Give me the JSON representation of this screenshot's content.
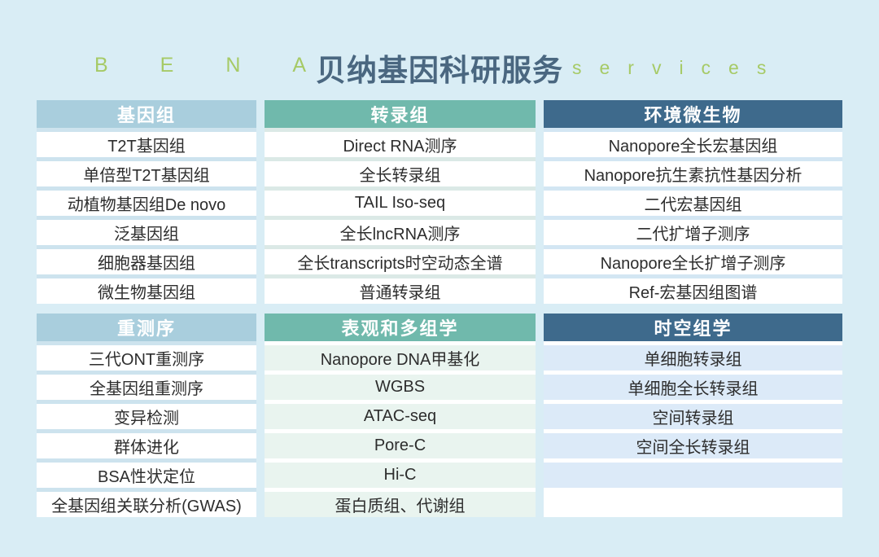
{
  "header": {
    "brand_left": "BENA",
    "title": "贝纳基因科研服务",
    "brand_right": "services"
  },
  "palette": {
    "page_bg": "#d9edf5",
    "brand_green": "#a6ca66",
    "title_color": "#4a6780",
    "header_light_blue": "#a9cedd",
    "header_teal": "#70b9ac",
    "header_dark_blue": "#3e6a8c",
    "row_white": "#ffffff",
    "row_tint_teal": "#e9f4ef",
    "row_tint_blue": "#dceaf8",
    "item_text": "#2d2d2d",
    "header_text": "#ffffff"
  },
  "columns": [
    {
      "name": "genome",
      "css": "col-1",
      "sections": [
        {
          "id": "genome",
          "theme": "light-blue",
          "header": "基因组",
          "items": [
            "T2T基因组",
            "单倍型T2T基因组",
            "动植物基因组De novo",
            "泛基因组",
            "细胞器基因组",
            "微生物基因组"
          ],
          "filler_rows": 0
        },
        {
          "id": "resequencing",
          "theme": "light-blue",
          "header": "重测序",
          "items": [
            "三代ONT重测序",
            "全基因组重测序",
            "变异检测",
            "群体进化",
            "BSA性状定位",
            "全基因组关联分析(GWAS)"
          ],
          "filler_rows": 0
        }
      ]
    },
    {
      "name": "transcriptome",
      "css": "col-2",
      "sections": [
        {
          "id": "transcriptome",
          "theme": "teal",
          "header": "转录组",
          "items": [
            "Direct RNA测序",
            "全长转录组",
            "TAIL Iso-seq",
            "全长lncRNA测序",
            "全长transcripts时空动态全谱",
            "普通转录组"
          ],
          "filler_rows": 0
        },
        {
          "id": "epigenetics-multiomics",
          "theme": "teal-tint-rows",
          "header": "表观和多组学",
          "items": [
            "Nanopore DNA甲基化",
            "WGBS",
            "ATAC-seq",
            "Pore-C",
            "Hi-C",
            "蛋白质组、代谢组"
          ],
          "filler_rows": 0
        }
      ]
    },
    {
      "name": "environmental-microbiome",
      "css": "col-3",
      "sections": [
        {
          "id": "environmental-microbiome",
          "theme": "dark-blue",
          "header": "环境微生物",
          "items": [
            "Nanopore全长宏基因组",
            "Nanopore抗生素抗性基因分析",
            "二代宏基因组",
            "二代扩增子测序",
            "Nanopore全长扩增子测序",
            "Ref-宏基因组图谱"
          ],
          "filler_rows": 0
        },
        {
          "id": "spatiotemporal-omics",
          "theme": "dark-blue-tint-rows",
          "header": "时空组学",
          "items": [
            "单细胞转录组",
            "单细胞全长转录组",
            "空间转录组",
            "空间全长转录组"
          ],
          "filler_rows": 1
        }
      ]
    }
  ]
}
